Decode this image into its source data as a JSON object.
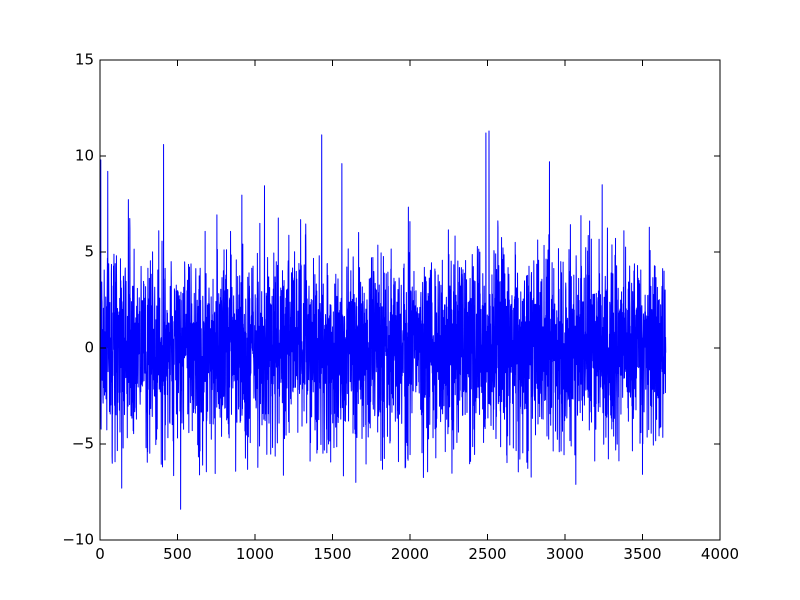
{
  "chart_data": {
    "type": "line",
    "title": "",
    "xlabel": "",
    "ylabel": "",
    "xlim": [
      0,
      4000
    ],
    "ylim": [
      -10,
      15
    ],
    "x_ticks": [
      0,
      500,
      1000,
      1500,
      2000,
      2500,
      3000,
      3500,
      4000
    ],
    "y_ticks": [
      -10,
      -5,
      0,
      5,
      10,
      15
    ],
    "x_tick_labels": [
      "0",
      "500",
      "1000",
      "1500",
      "2000",
      "2500",
      "3000",
      "3500",
      "4000"
    ],
    "y_tick_labels": [
      "−10",
      "−5",
      "0",
      "5",
      "10",
      "15"
    ],
    "grid": false,
    "legend": "none",
    "series": [
      {
        "color": "#0000ff",
        "x_start": 0,
        "x_end": 3650,
        "points": 3650,
        "y_min_observed": -8.4,
        "y_max_observed": 11.3,
        "mean_approx": 0,
        "notable_peaks": [
          {
            "x": 5,
            "y": 9.8
          },
          {
            "x": 50,
            "y": 9.2
          },
          {
            "x": 410,
            "y": 10.6
          },
          {
            "x": 1430,
            "y": 11.1
          },
          {
            "x": 1560,
            "y": 9.6
          },
          {
            "x": 2490,
            "y": 11.2
          },
          {
            "x": 2510,
            "y": 11.3
          },
          {
            "x": 2900,
            "y": 9.7
          },
          {
            "x": 3240,
            "y": 8.5
          }
        ],
        "notable_troughs": [
          {
            "x": 140,
            "y": -7.3
          },
          {
            "x": 520,
            "y": -8.4
          },
          {
            "x": 1650,
            "y": -7.0
          },
          {
            "x": 3070,
            "y": -7.1
          }
        ]
      }
    ]
  }
}
